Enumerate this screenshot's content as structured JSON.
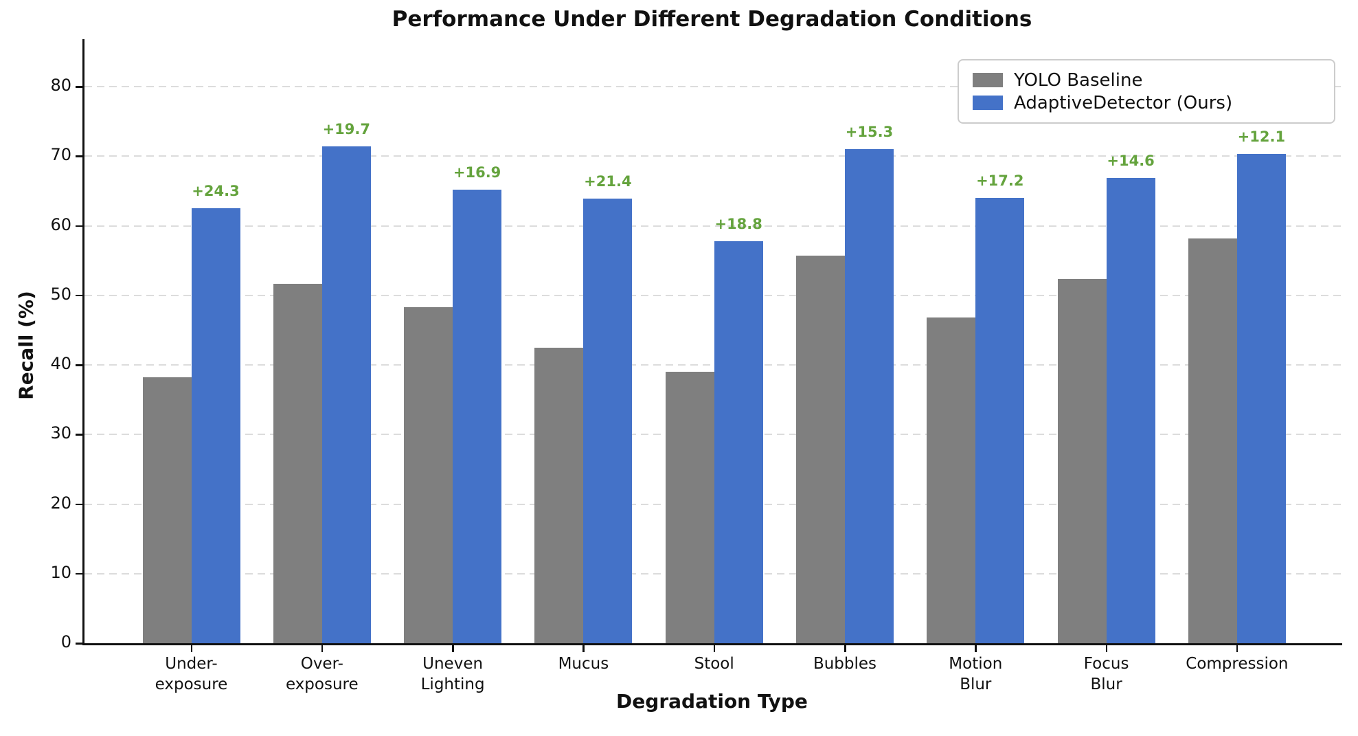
{
  "title": "Performance Under Different Degradation Conditions",
  "axes": {
    "xlabel": "Degradation Type",
    "ylabel": "Recall (%)"
  },
  "legend": {
    "position": "upper right",
    "items": [
      {
        "label": "YOLO Baseline",
        "color": "#7f7f7f"
      },
      {
        "label": "AdaptiveDetector (Ours)",
        "color": "#4472c8"
      }
    ]
  },
  "colors": {
    "baseline_bar": "#7f7f7f",
    "ours_bar": "#4472c8",
    "gain_text": "#64a33d",
    "grid": "#dcdcdc",
    "axis": "#111111",
    "background": "#ffffff"
  },
  "chart_data": {
    "type": "bar",
    "title": "Performance Under Different Degradation Conditions",
    "xlabel": "Degradation Type",
    "ylabel": "Recall (%)",
    "categories": [
      "Under-\nexposure",
      "Over-\nexposure",
      "Uneven\nLighting",
      "Mucus",
      "Stool",
      "Bubbles",
      "Motion\nBlur",
      "Focus\nBlur",
      "Compression"
    ],
    "series": [
      {
        "name": "YOLO Baseline",
        "color": "#7f7f7f",
        "values": [
          38.2,
          51.7,
          48.3,
          42.5,
          39.0,
          55.7,
          46.8,
          52.3,
          58.2
        ]
      },
      {
        "name": "AdaptiveDetector (Ours)",
        "color": "#4472c8",
        "values": [
          62.5,
          71.4,
          65.2,
          63.9,
          57.8,
          71.0,
          64.0,
          66.9,
          70.3
        ]
      }
    ],
    "gain_labels": [
      "+24.3",
      "+19.7",
      "+16.9",
      "+21.4",
      "+18.8",
      "+15.3",
      "+17.2",
      "+14.6",
      "+12.1"
    ],
    "gain_color": "#64a33d",
    "ylim": [
      0,
      86.5
    ],
    "yticks": [
      "0",
      "10",
      "20",
      "30",
      "40",
      "50",
      "60",
      "70",
      "80"
    ],
    "grid": "horizontal dashed",
    "legend_position": "upper right"
  }
}
